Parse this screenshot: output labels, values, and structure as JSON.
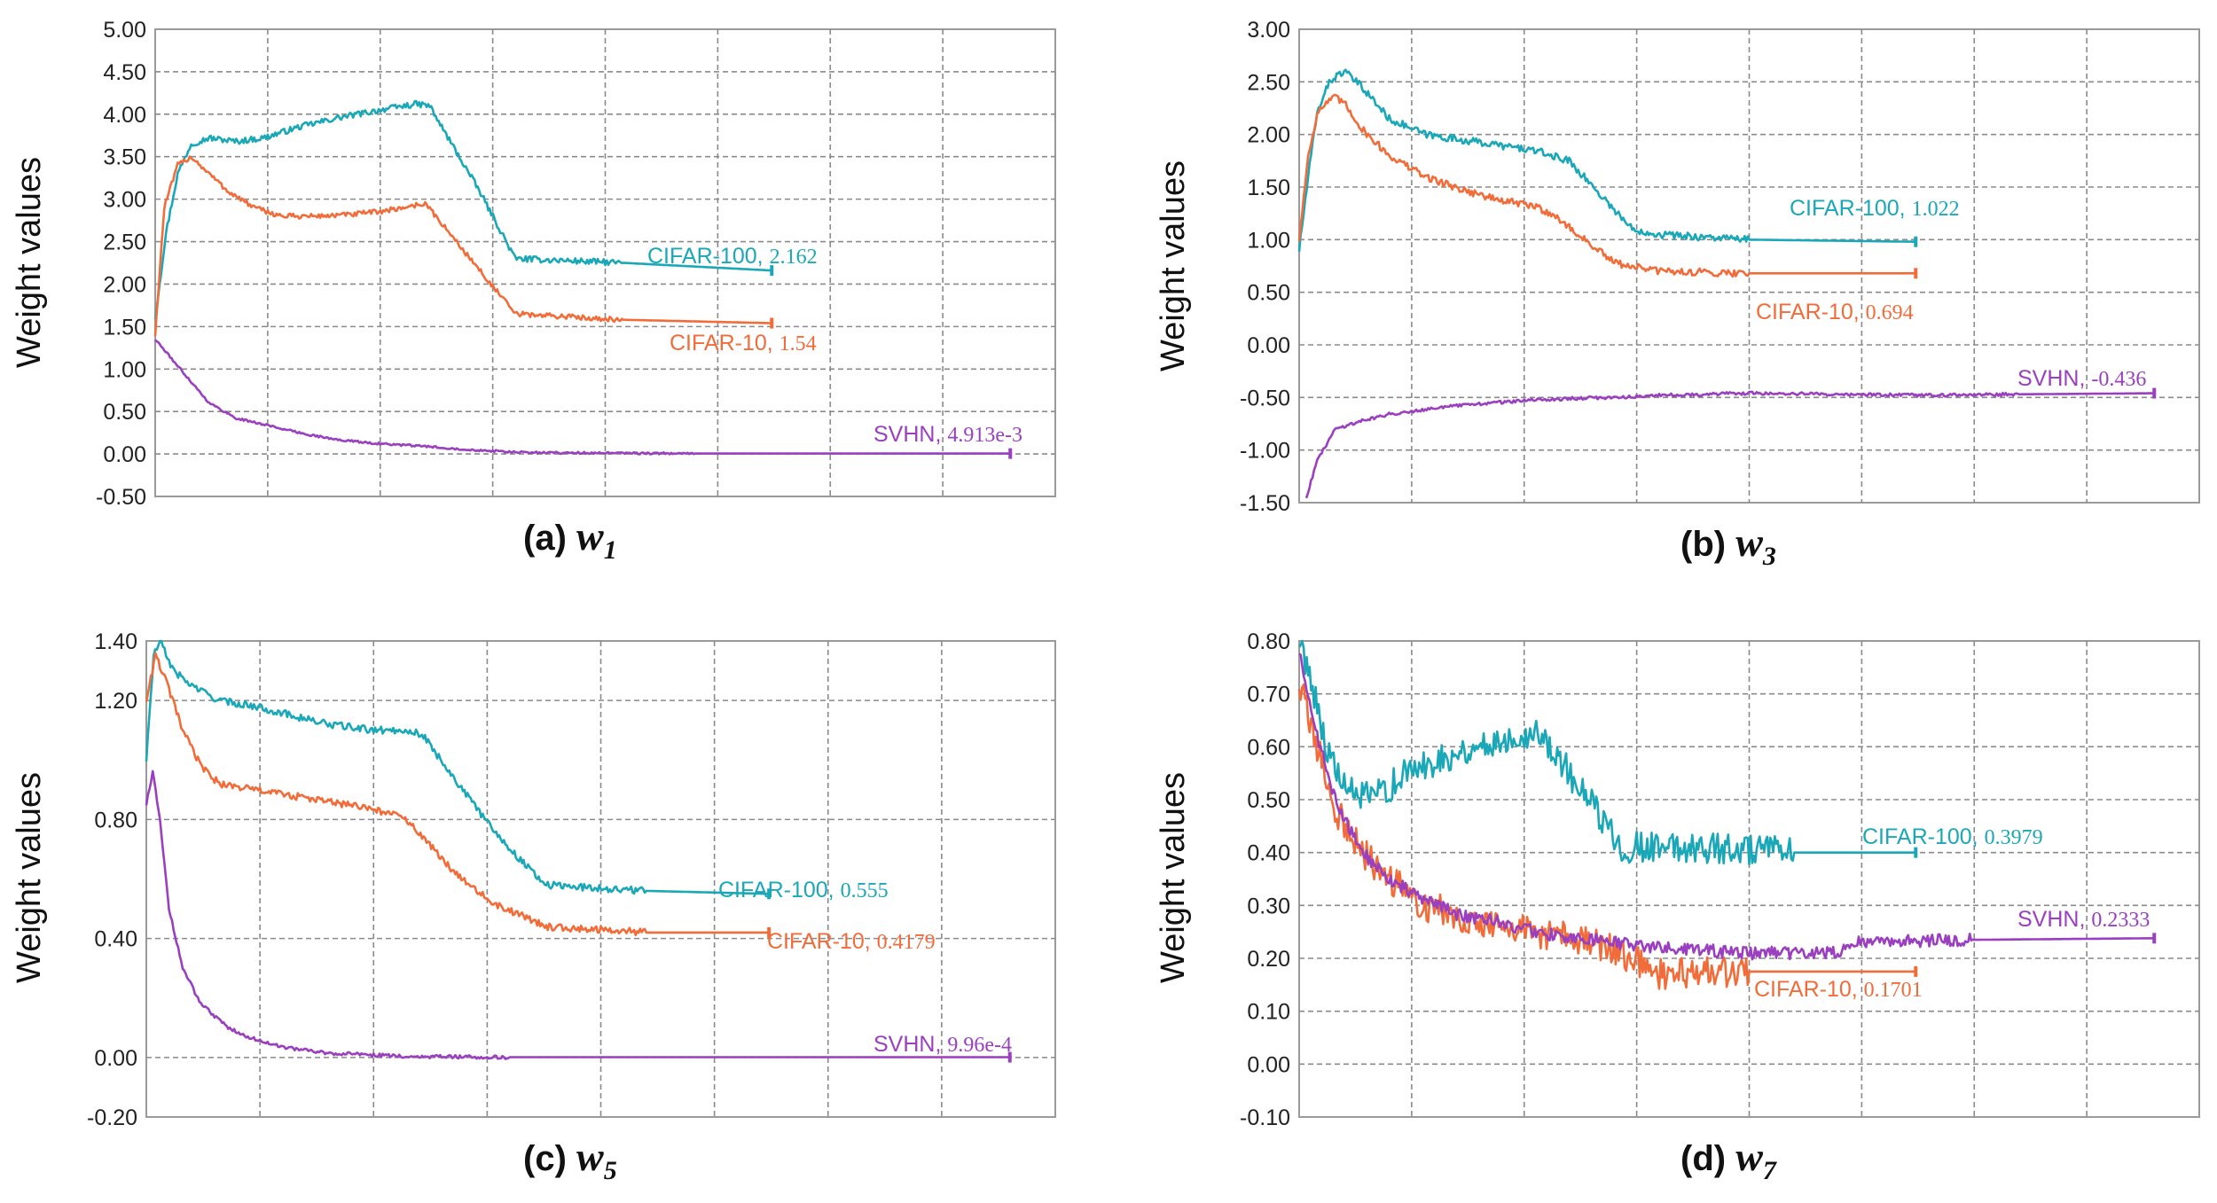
{
  "figure": {
    "colors": {
      "cifar100": "#1aa8b8",
      "cifar10": "#f26c3a",
      "svhn": "#9a3fc0"
    }
  },
  "chart_data": [
    {
      "id": "a",
      "type": "line",
      "caption_prefix": "(a)",
      "caption_var": "w",
      "caption_sub": "1",
      "ylabel": "Weight values",
      "xlabel": "",
      "yticks": [
        "5.00",
        "4.50",
        "4.00",
        "3.50",
        "3.00",
        "2.50",
        "2.00",
        "1.50",
        "1.00",
        "0.50",
        "0.00",
        "-0.50"
      ],
      "ylim": [
        -0.5,
        5.0
      ],
      "xlim": [
        0,
        100
      ],
      "grid": true,
      "series": [
        {
          "key": "cifar100",
          "name": "CIFAR-100",
          "final": "2.162",
          "end_x": 68.5,
          "noise": 0.035,
          "points": [
            [
              0,
              1.6
            ],
            [
              1.2,
              2.6
            ],
            [
              2.5,
              3.3
            ],
            [
              4,
              3.65
            ],
            [
              6,
              3.72
            ],
            [
              9,
              3.68
            ],
            [
              12,
              3.72
            ],
            [
              16,
              3.85
            ],
            [
              20,
              3.95
            ],
            [
              25,
              4.05
            ],
            [
              29,
              4.12
            ],
            [
              30.5,
              4.1
            ],
            [
              31,
              4.0
            ],
            [
              36,
              3.1
            ],
            [
              40,
              2.3
            ],
            [
              52,
              2.25
            ],
            [
              68.5,
              2.16
            ]
          ]
        },
        {
          "key": "cifar10",
          "name": "CIFAR-10",
          "final": "1.54",
          "end_x": 68.5,
          "noise": 0.03,
          "points": [
            [
              0,
              1.4
            ],
            [
              1,
              2.9
            ],
            [
              2.5,
              3.4
            ],
            [
              4,
              3.5
            ],
            [
              6,
              3.3
            ],
            [
              8,
              3.1
            ],
            [
              11,
              2.9
            ],
            [
              14,
              2.8
            ],
            [
              18,
              2.8
            ],
            [
              22,
              2.82
            ],
            [
              26,
              2.87
            ],
            [
              30,
              2.95
            ],
            [
              35,
              2.3
            ],
            [
              40,
              1.65
            ],
            [
              52,
              1.58
            ],
            [
              68.5,
              1.54
            ]
          ]
        },
        {
          "key": "svhn",
          "name": "SVHN",
          "final": "4.913e-3",
          "end_x": 95,
          "noise": 0.012,
          "points": [
            [
              0,
              1.35
            ],
            [
              2,
              1.1
            ],
            [
              4,
              0.85
            ],
            [
              6,
              0.6
            ],
            [
              9,
              0.42
            ],
            [
              12,
              0.35
            ],
            [
              16,
              0.25
            ],
            [
              20,
              0.17
            ],
            [
              25,
              0.12
            ],
            [
              30,
              0.09
            ],
            [
              35,
              0.05
            ],
            [
              40,
              0.02
            ],
            [
              50,
              0.01
            ],
            [
              60,
              0.005
            ],
            [
              95,
              0.005
            ]
          ]
        }
      ],
      "labels": [
        {
          "key": "cifar100",
          "name": "CIFAR-100,",
          "value": "2.162"
        },
        {
          "key": "cifar10",
          "name": "CIFAR-10,",
          "value": "1.54"
        },
        {
          "key": "svhn",
          "name": "SVHN,",
          "value": "4.913e-3"
        }
      ]
    },
    {
      "id": "b",
      "type": "line",
      "caption_prefix": "(b)",
      "caption_var": "w",
      "caption_sub": "3",
      "ylabel": "Weight values",
      "xlabel": "",
      "yticks": [
        "3.00",
        "2.50",
        "2.00",
        "1.50",
        "1.00",
        "0.50",
        "0.00",
        "-0.50",
        "-1.00",
        "-1.50"
      ],
      "ylim": [
        -1.5,
        3.0
      ],
      "xlim": [
        0,
        100
      ],
      "grid": true,
      "series": [
        {
          "key": "cifar100",
          "name": "CIFAR-100",
          "final": "1.022",
          "end_x": 68.5,
          "noise": 0.035,
          "points": [
            [
              0,
              0.9
            ],
            [
              1,
              1.6
            ],
            [
              2,
              2.2
            ],
            [
              3,
              2.45
            ],
            [
              4,
              2.55
            ],
            [
              5,
              2.6
            ],
            [
              7,
              2.45
            ],
            [
              10,
              2.15
            ],
            [
              14,
              2.0
            ],
            [
              18,
              1.95
            ],
            [
              22,
              1.9
            ],
            [
              26,
              1.85
            ],
            [
              28,
              1.8
            ],
            [
              30,
              1.75
            ],
            [
              37,
              1.1
            ],
            [
              40,
              1.05
            ],
            [
              50,
              1.0
            ],
            [
              68.5,
              0.98
            ]
          ]
        },
        {
          "key": "cifar10",
          "name": "CIFAR-10",
          "final": "0.694",
          "end_x": 68.5,
          "noise": 0.035,
          "points": [
            [
              0,
              1.0
            ],
            [
              1,
              1.8
            ],
            [
              2,
              2.2
            ],
            [
              3,
              2.3
            ],
            [
              4,
              2.35
            ],
            [
              5,
              2.3
            ],
            [
              7,
              2.05
            ],
            [
              10,
              1.8
            ],
            [
              14,
              1.6
            ],
            [
              18,
              1.48
            ],
            [
              22,
              1.38
            ],
            [
              26,
              1.32
            ],
            [
              28,
              1.25
            ],
            [
              35,
              0.78
            ],
            [
              40,
              0.7
            ],
            [
              50,
              0.68
            ],
            [
              68.5,
              0.68
            ]
          ]
        },
        {
          "key": "svhn",
          "name": "SVHN",
          "final": "-0.436",
          "end_x": 95,
          "noise": 0.015,
          "points": [
            [
              0.8,
              -1.45
            ],
            [
              2,
              -1.1
            ],
            [
              4,
              -0.8
            ],
            [
              7,
              -0.72
            ],
            [
              10,
              -0.66
            ],
            [
              15,
              -0.6
            ],
            [
              20,
              -0.56
            ],
            [
              25,
              -0.53
            ],
            [
              30,
              -0.51
            ],
            [
              35,
              -0.5
            ],
            [
              40,
              -0.48
            ],
            [
              50,
              -0.46
            ],
            [
              60,
              -0.47
            ],
            [
              70,
              -0.48
            ],
            [
              80,
              -0.47
            ],
            [
              95,
              -0.46
            ]
          ]
        }
      ],
      "labels": [
        {
          "key": "cifar100",
          "name": "CIFAR-100,",
          "value": "1.022"
        },
        {
          "key": "cifar10",
          "name": "CIFAR-10,",
          "value": "0.694"
        },
        {
          "key": "svhn",
          "name": "SVHN,",
          "value": "-0.436"
        }
      ]
    },
    {
      "id": "c",
      "type": "line",
      "caption_prefix": "(c)",
      "caption_var": "w",
      "caption_sub": "5",
      "ylabel": "Weight values",
      "xlabel": "",
      "yticks": [
        "1.40",
        "1.20",
        "0.80",
        "0.40",
        "0.00",
        "-0.20"
      ],
      "ytick_values": [
        1.4,
        1.2,
        0.8,
        0.4,
        0.0,
        -0.2
      ],
      "ylim": [
        -0.2,
        1.4
      ],
      "xlim": [
        0,
        100
      ],
      "grid": true,
      "series": [
        {
          "key": "cifar100",
          "name": "CIFAR-100",
          "final": "0.555",
          "end_x": 68.5,
          "noise": 0.012,
          "points": [
            [
              0,
              1.0
            ],
            [
              0.8,
              1.35
            ],
            [
              1.5,
              1.4
            ],
            [
              3,
              1.3
            ],
            [
              5,
              1.25
            ],
            [
              8,
              1.2
            ],
            [
              12,
              1.18
            ],
            [
              16,
              1.15
            ],
            [
              20,
              1.12
            ],
            [
              25,
              1.1
            ],
            [
              29,
              1.1
            ],
            [
              30.5,
              1.08
            ],
            [
              36,
              0.85
            ],
            [
              40,
              0.7
            ],
            [
              44,
              0.58
            ],
            [
              55,
              0.56
            ],
            [
              68.5,
              0.55
            ]
          ]
        },
        {
          "key": "cifar10",
          "name": "CIFAR-10",
          "final": "0.4179",
          "end_x": 68.5,
          "noise": 0.012,
          "points": [
            [
              0,
              1.2
            ],
            [
              1,
              1.35
            ],
            [
              2,
              1.28
            ],
            [
              4,
              1.1
            ],
            [
              6,
              0.98
            ],
            [
              8,
              0.92
            ],
            [
              12,
              0.9
            ],
            [
              16,
              0.88
            ],
            [
              20,
              0.86
            ],
            [
              24,
              0.84
            ],
            [
              27,
              0.82
            ],
            [
              29,
              0.79
            ],
            [
              33,
              0.65
            ],
            [
              38,
              0.52
            ],
            [
              44,
              0.44
            ],
            [
              55,
              0.42
            ],
            [
              68.5,
              0.42
            ]
          ]
        },
        {
          "key": "svhn",
          "name": "SVHN",
          "final": "9.96e-4",
          "end_x": 95,
          "noise": 0.006,
          "points": [
            [
              0,
              0.85
            ],
            [
              0.7,
              0.96
            ],
            [
              1.5,
              0.8
            ],
            [
              2.5,
              0.5
            ],
            [
              4,
              0.3
            ],
            [
              6,
              0.18
            ],
            [
              9,
              0.1
            ],
            [
              12,
              0.06
            ],
            [
              16,
              0.03
            ],
            [
              20,
              0.015
            ],
            [
              25,
              0.008
            ],
            [
              30,
              0.003
            ],
            [
              40,
              0.001
            ],
            [
              95,
              0.001
            ]
          ]
        }
      ],
      "labels": [
        {
          "key": "cifar100",
          "name": "CIFAR-100,",
          "value": "0.555"
        },
        {
          "key": "cifar10",
          "name": "CIFAR-10,",
          "value": "0.4179"
        },
        {
          "key": "svhn",
          "name": "SVHN,",
          "value": "9.96e-4"
        }
      ]
    },
    {
      "id": "d",
      "type": "line",
      "caption_prefix": "(d)",
      "caption_var": "w",
      "caption_sub": "7",
      "ylabel": "Weight values",
      "xlabel": "",
      "yticks": [
        "0.80",
        "0.70",
        "0.60",
        "0.50",
        "0.40",
        "0.30",
        "0.20",
        "0.10",
        "0.00",
        "-0.10"
      ],
      "ylim": [
        -0.1,
        0.8
      ],
      "xlim": [
        0,
        100
      ],
      "grid": true,
      "series": [
        {
          "key": "cifar100",
          "name": "CIFAR-100",
          "final": "0.3979",
          "end_x": 68.5,
          "noise": 0.03,
          "points": [
            [
              0,
              0.8
            ],
            [
              1,
              0.75
            ],
            [
              2,
              0.68
            ],
            [
              3,
              0.6
            ],
            [
              5,
              0.52
            ],
            [
              8,
              0.5
            ],
            [
              12,
              0.55
            ],
            [
              16,
              0.58
            ],
            [
              20,
              0.6
            ],
            [
              24,
              0.62
            ],
            [
              26,
              0.63
            ],
            [
              28,
              0.6
            ],
            [
              32,
              0.5
            ],
            [
              36,
              0.41
            ],
            [
              45,
              0.41
            ],
            [
              55,
              0.4
            ],
            [
              68.5,
              0.4
            ]
          ]
        },
        {
          "key": "cifar10",
          "name": "CIFAR-10",
          "final": "0.1701",
          "end_x": 68.5,
          "noise": 0.03,
          "points": [
            [
              0,
              0.72
            ],
            [
              2,
              0.6
            ],
            [
              4,
              0.48
            ],
            [
              7,
              0.4
            ],
            [
              10,
              0.35
            ],
            [
              14,
              0.3
            ],
            [
              18,
              0.28
            ],
            [
              22,
              0.26
            ],
            [
              26,
              0.25
            ],
            [
              30,
              0.24
            ],
            [
              34,
              0.22
            ],
            [
              37,
              0.2
            ],
            [
              40,
              0.17
            ],
            [
              50,
              0.175
            ],
            [
              68.5,
              0.175
            ]
          ]
        },
        {
          "key": "svhn",
          "name": "SVHN",
          "final": "0.2333",
          "end_x": 95,
          "noise": 0.012,
          "points": [
            [
              0,
              0.78
            ],
            [
              2,
              0.62
            ],
            [
              4,
              0.5
            ],
            [
              7,
              0.4
            ],
            [
              10,
              0.35
            ],
            [
              14,
              0.31
            ],
            [
              18,
              0.28
            ],
            [
              22,
              0.27
            ],
            [
              26,
              0.25
            ],
            [
              30,
              0.24
            ],
            [
              35,
              0.23
            ],
            [
              40,
              0.22
            ],
            [
              50,
              0.21
            ],
            [
              60,
              0.21
            ],
            [
              62,
              0.23
            ],
            [
              75,
              0.235
            ],
            [
              95,
              0.238
            ]
          ]
        }
      ],
      "labels": [
        {
          "key": "cifar100",
          "name": "CIFAR-100,",
          "value": "0.3979"
        },
        {
          "key": "cifar10",
          "name": "CIFAR-10,",
          "value": "0.1701"
        },
        {
          "key": "svhn",
          "name": "SVHN,",
          "value": "0.2333"
        }
      ]
    }
  ]
}
